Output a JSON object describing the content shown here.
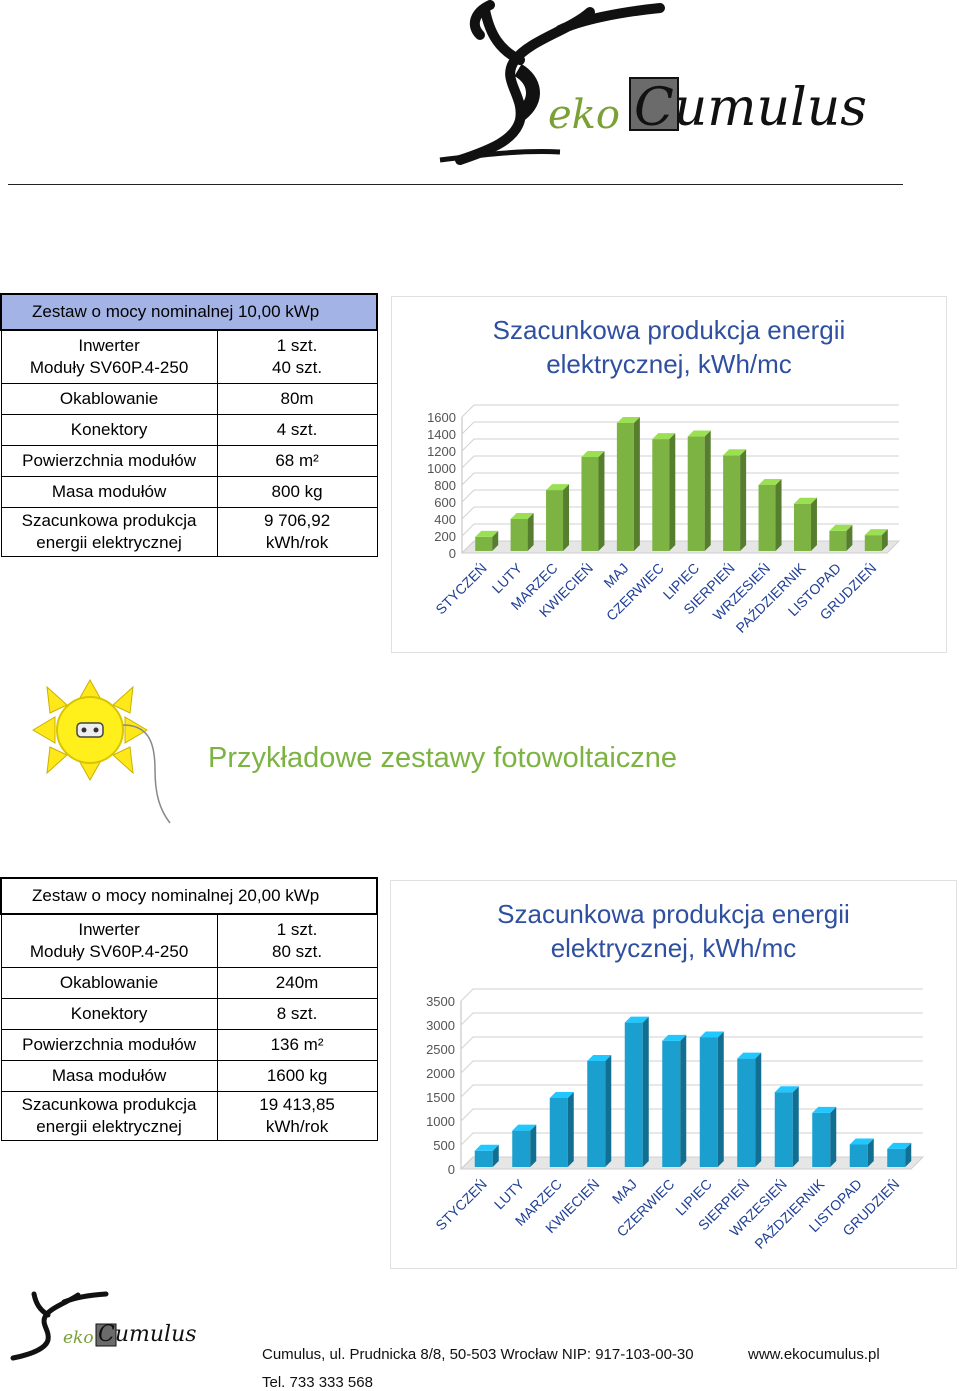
{
  "logo": {
    "brand_prefix": "eko",
    "brand_main": "Cumulus"
  },
  "section_title": "Przykładowe zestawy fotowoltaiczne",
  "sets": [
    {
      "title": "Zestaw o mocy nominalnej 10,00 kWp",
      "rows": [
        {
          "label": "Inwerter",
          "value": "1 szt."
        },
        {
          "label": "Moduły SV60P.4-250",
          "value": "40 szt."
        },
        {
          "label": "Okablowanie",
          "value": "80m"
        },
        {
          "label": "Konektory",
          "value": "4 szt."
        },
        {
          "label": "Powierzchnia modułów",
          "value": "68 m²"
        },
        {
          "label": "Masa modułów",
          "value": "800 kg"
        },
        {
          "label": "Szacunkowa produkcja energii elektrycznej",
          "value": "9 706,92 kWh/rok"
        }
      ]
    },
    {
      "title": "Zestaw o mocy nominalnej 20,00 kWp",
      "rows": [
        {
          "label": "Inwerter",
          "value": "1 szt."
        },
        {
          "label": "Moduły  SV60P.4-250",
          "value": "80 szt."
        },
        {
          "label": "Okablowanie",
          "value": "240m"
        },
        {
          "label": "Konektory",
          "value": "8 szt."
        },
        {
          "label": "Powierzchnia modułów",
          "value": "136 m²"
        },
        {
          "label": "Masa modułów",
          "value": "1600 kg"
        },
        {
          "label": "Szacunkowa produkcja energii elektrycznej",
          "value": "19 413,85 kWh/rok"
        }
      ]
    }
  ],
  "chart_data": [
    {
      "type": "bar",
      "title": "Szacunkowa produkcja energii elektrycznej, kWh/mc",
      "categories": [
        "STYCZEŃ",
        "LUTY",
        "MARZEC",
        "KWIECIEŃ",
        "MAJ",
        "CZERWIEC",
        "LIPIEC",
        "SIERPIEŃ",
        "WRZESIEŃ",
        "PAŹDZIERNIK",
        "LISTOPAD",
        "GRUDZIEŃ"
      ],
      "values": [
        190,
        400,
        740,
        1130,
        1530,
        1340,
        1370,
        1150,
        800,
        580,
        260,
        210
      ],
      "ylim": [
        0,
        1600
      ],
      "yticks": [
        "1600",
        "1400",
        "1200",
        "1000",
        "800",
        "600",
        "400",
        "200",
        "0"
      ],
      "color": "#7cb342",
      "grid": true
    },
    {
      "type": "bar",
      "title": "Szacunkowa produkcja energii elektrycznej, kWh/mc",
      "categories": [
        "STYCZEŃ",
        "LUTY",
        "MARZEC",
        "KWIECIEŃ",
        "MAJ",
        "CZERWIEC",
        "LIPIEC",
        "SIERPIEŃ",
        "WRZESIEŃ",
        "PAŹDZIERNIK",
        "LISTOPAD",
        "GRUDZIEŃ"
      ],
      "values": [
        380,
        800,
        1480,
        2250,
        3050,
        2670,
        2740,
        2300,
        1600,
        1170,
        510,
        420
      ],
      "ylim": [
        0,
        3500
      ],
      "yticks": [
        "3500",
        "3000",
        "2500",
        "2000",
        "1500",
        "1000",
        "500",
        "0"
      ],
      "color": "#1a9fcf",
      "grid": true
    }
  ],
  "footer": {
    "address": "Cumulus, ul. Prudnicka 8/8,  50-503 Wrocław NIP: 917-103-00-30",
    "website": "www.ekocumulus.pl",
    "phone": "Tel. 733 333 568"
  }
}
